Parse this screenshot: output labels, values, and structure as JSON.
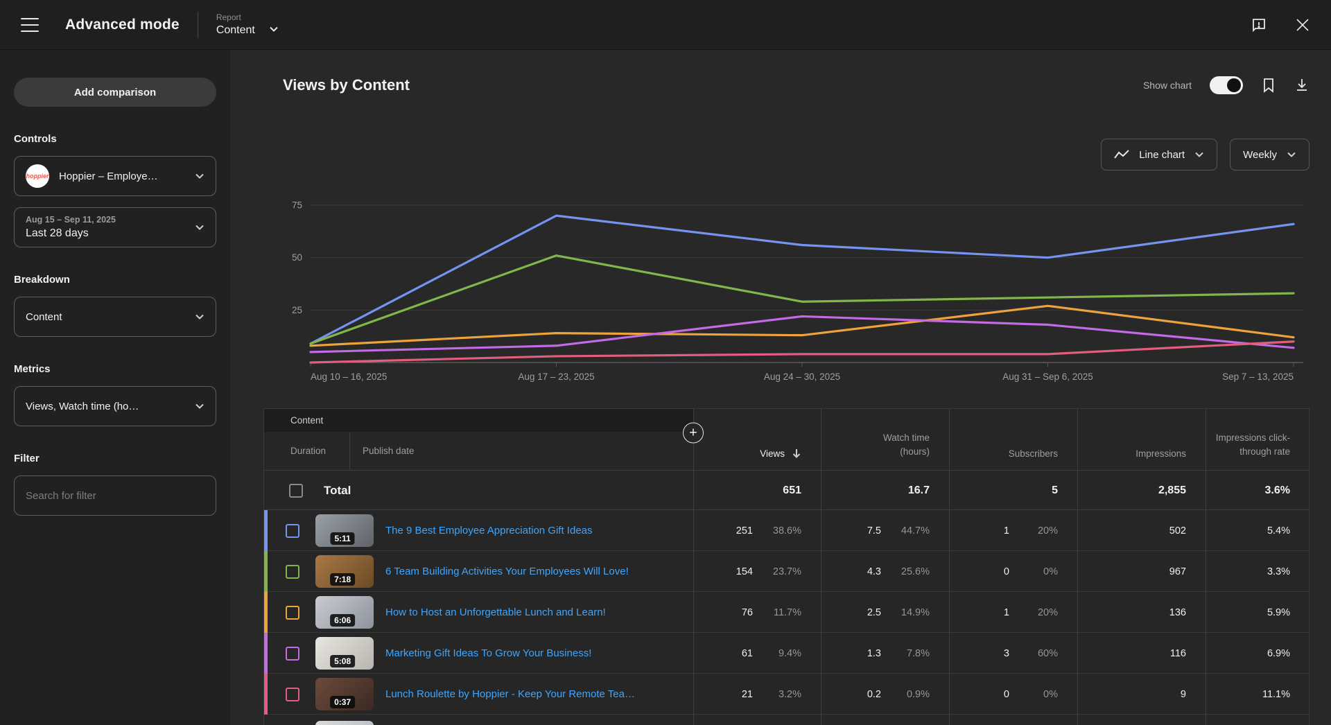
{
  "topbar": {
    "title": "Advanced mode",
    "report_label": "Report",
    "report_value": "Content"
  },
  "sidebar": {
    "add_comparison_label": "Add comparison",
    "controls_heading": "Controls",
    "channel": {
      "name": "Hoppier – Employe…",
      "avatar_text": "hoppier"
    },
    "date": {
      "range": "Aug 15 – Sep 11, 2025",
      "preset": "Last 28 days"
    },
    "breakdown_heading": "Breakdown",
    "breakdown_value": "Content",
    "metrics_heading": "Metrics",
    "metrics_value": "Views, Watch time (ho…",
    "filter_heading": "Filter",
    "filter_placeholder": "Search for filter"
  },
  "main": {
    "title": "Views by Content",
    "show_chart_label": "Show chart",
    "chart_type_label": "Line chart",
    "granularity_label": "Weekly"
  },
  "chart_data": {
    "type": "line",
    "x": [
      "Aug 10 – 16, 2025",
      "Aug 17 – 23, 2025",
      "Aug 24 – 30, 2025",
      "Aug 31 – Sep 6, 2025",
      "Sep 7 – 13, 2025"
    ],
    "y_ticks": [
      0,
      25,
      50,
      75
    ],
    "ylim": [
      0,
      82
    ],
    "grid": true,
    "legend_position": "none",
    "series": [
      {
        "name": "The 9 Best Employee Appreciation Gift Ideas",
        "color": "#7593f0",
        "values": [
          9,
          70,
          56,
          50,
          66
        ]
      },
      {
        "name": "6 Team Building Activities Your Employees Will Love!",
        "color": "#81b64c",
        "values": [
          9,
          51,
          29,
          31,
          33
        ]
      },
      {
        "name": "How to Host an Unforgettable Lunch and Learn!",
        "color": "#eda33b",
        "values": [
          8,
          14,
          13,
          27,
          12
        ]
      },
      {
        "name": "Marketing Gift Ideas To Grow Your Business!",
        "color": "#c36ae4",
        "values": [
          5,
          8,
          22,
          18,
          7
        ]
      },
      {
        "name": "Lunch Roulette by Hoppier - Keep Your Remote Team C…",
        "color": "#e25d7e",
        "values": [
          0,
          3,
          4,
          4,
          10
        ]
      }
    ]
  },
  "table": {
    "group_header": "Content",
    "sub_headers": [
      "Duration",
      "Publish date"
    ],
    "columns": [
      "Views",
      "Watch time (hours)",
      "Subscribers",
      "Impressions",
      "Impressions click-through rate"
    ],
    "total": {
      "label": "Total",
      "views": "651",
      "watch": "16.7",
      "subs": "5",
      "impressions": "2,855",
      "ctr": "3.6%"
    },
    "rows": [
      {
        "accent": "#7593f0",
        "thumb1": "#9aa0a6",
        "thumb2": "#5f6368",
        "duration": "5:11",
        "title": "The 9 Best Employee Appreciation Gift Ideas",
        "views": "251",
        "views_pct": "38.6%",
        "watch": "7.5",
        "watch_pct": "44.7%",
        "subs": "1",
        "subs_pct": "20%",
        "impressions": "502",
        "ctr": "5.4%"
      },
      {
        "accent": "#81b64c",
        "thumb1": "#a97845",
        "thumb2": "#6b4a26",
        "duration": "7:18",
        "title": "6 Team Building Activities Your Employees Will Love!",
        "views": "154",
        "views_pct": "23.7%",
        "watch": "4.3",
        "watch_pct": "25.6%",
        "subs": "0",
        "subs_pct": "0%",
        "impressions": "967",
        "ctr": "3.3%"
      },
      {
        "accent": "#eda33b",
        "thumb1": "#c9ccd1",
        "thumb2": "#8d939b",
        "duration": "6:06",
        "title": "How to Host an Unforgettable Lunch and Learn!",
        "views": "76",
        "views_pct": "11.7%",
        "watch": "2.5",
        "watch_pct": "14.9%",
        "subs": "1",
        "subs_pct": "20%",
        "impressions": "136",
        "ctr": "5.9%"
      },
      {
        "accent": "#c36ae4",
        "thumb1": "#e8e6e2",
        "thumb2": "#b8b4ae",
        "duration": "5:08",
        "title": "Marketing Gift Ideas To Grow Your Business!",
        "views": "61",
        "views_pct": "9.4%",
        "watch": "1.3",
        "watch_pct": "7.8%",
        "subs": "3",
        "subs_pct": "60%",
        "impressions": "116",
        "ctr": "6.9%"
      },
      {
        "accent": "#e25d7e",
        "thumb1": "#6d4a3a",
        "thumb2": "#3a2a24",
        "duration": "0:37",
        "title": "Lunch Roulette by Hoppier - Keep Your Remote Team C…",
        "views": "21",
        "views_pct": "3.2%",
        "watch": "0.2",
        "watch_pct": "0.9%",
        "subs": "0",
        "subs_pct": "0%",
        "impressions": "9",
        "ctr": "11.1%"
      }
    ]
  }
}
